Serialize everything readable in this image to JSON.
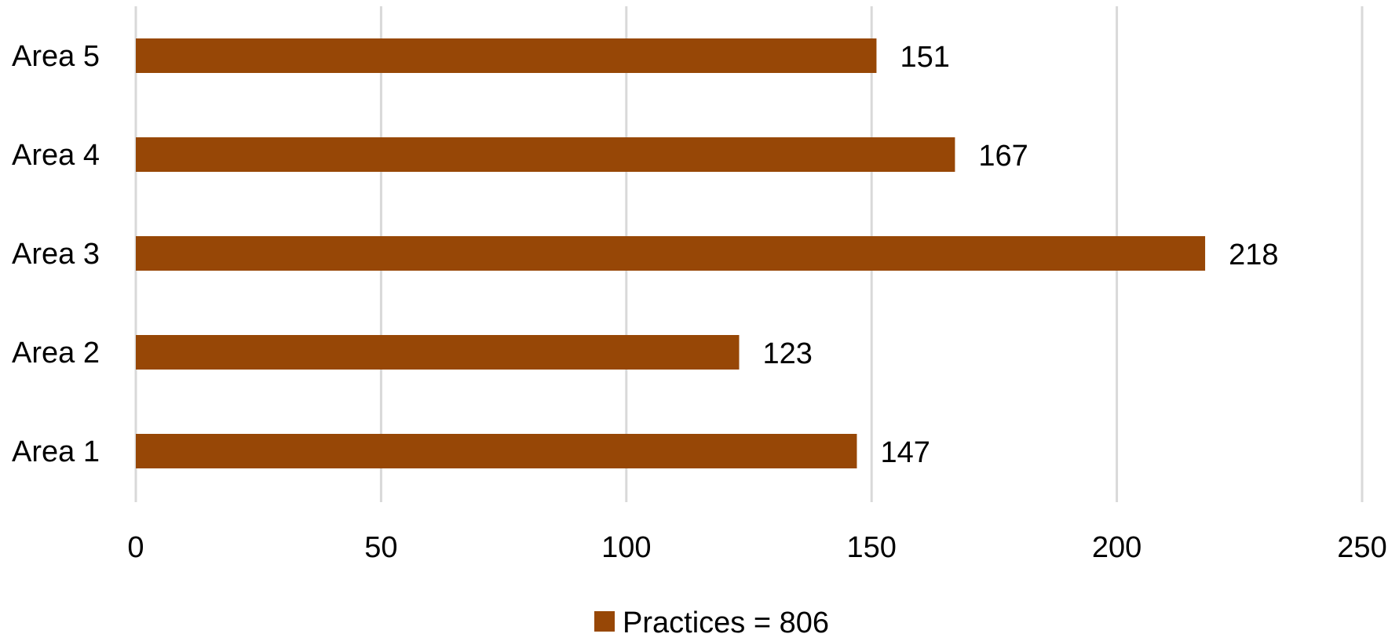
{
  "chart_data": {
    "type": "bar",
    "orientation": "horizontal",
    "categories": [
      "Area 1",
      "Area 2",
      "Area 3",
      "Area 4",
      "Area 5"
    ],
    "series": [
      {
        "name": "Practices = 806",
        "values": [
          147,
          123,
          218,
          167,
          151
        ],
        "color": "#974706"
      }
    ],
    "title": "",
    "xlabel": "",
    "ylabel": "",
    "xlim": [
      0,
      250
    ],
    "x_ticks": [
      0,
      50,
      100,
      150,
      200,
      250
    ],
    "grid": "vertical",
    "data_labels": true,
    "legend": "bottom-center"
  }
}
